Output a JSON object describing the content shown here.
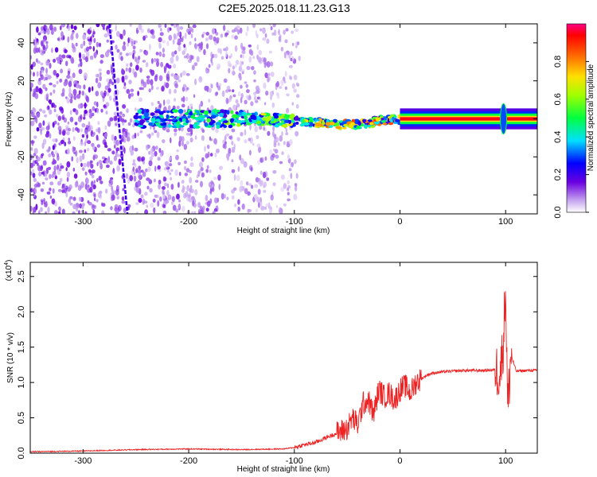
{
  "title": "C2E5.2025.018.11.23.G13",
  "chart_data": [
    {
      "type": "heatmap",
      "title": "",
      "xlabel": "Height of straight line (km)",
      "ylabel": "Frequency (Hz)",
      "xlim": [
        -350,
        130
      ],
      "ylim": [
        -50,
        50
      ],
      "xticks": [
        -300,
        -200,
        -100,
        0,
        100
      ],
      "yticks": [
        -40,
        -20,
        0,
        20,
        40
      ],
      "colorbar": {
        "label": "Normalized spectral amplitude",
        "range": [
          0,
          1
        ],
        "ticks": [
          "0.0",
          "0.2",
          "0.4",
          "0.6",
          "0.8"
        ],
        "colormap": "rainbow (purple→blue→cyan→green→yellow→orange→red→pink)"
      },
      "features": [
        {
          "name": "scattered noise speckle",
          "x_range": [
            -350,
            -95
          ],
          "y_range": [
            -50,
            50
          ]
        },
        {
          "name": "inclined noise streak",
          "x": [
            -275,
            -258
          ],
          "y": [
            50,
            -50
          ]
        },
        {
          "name": "signal band",
          "x": [
            -250,
            -150,
            -100,
            -75,
            -55,
            -40,
            -20,
            0,
            130
          ],
          "y": [
            0,
            0,
            -1,
            -2,
            -3,
            -3,
            -1,
            0,
            0
          ]
        },
        {
          "name": "spike",
          "x": 98,
          "y_range": [
            -8,
            8
          ]
        }
      ]
    },
    {
      "type": "line",
      "title": "",
      "xlabel": "Height of straight line (km)",
      "ylabel": "SNR (10 * v/v)",
      "yscale_note": "(x10",
      "yscale_exp": "4",
      "xlim": [
        -350,
        130
      ],
      "ylim": [
        0,
        2.7
      ],
      "xticks": [
        -300,
        -200,
        -100,
        0,
        100
      ],
      "yticks": [
        "0.0",
        "0.5",
        "1.0",
        "1.5",
        "2.0",
        "2.5"
      ],
      "series": [
        {
          "color": "#ee2222",
          "x": [
            -350,
            -300,
            -250,
            -200,
            -150,
            -110,
            -100,
            -90,
            -80,
            -70,
            -60,
            -50,
            -45,
            -40,
            -35,
            -30,
            -25,
            -20,
            -15,
            -10,
            -5,
            0,
            5,
            10,
            15,
            20,
            25,
            30,
            40,
            50,
            60,
            70,
            80,
            90,
            95,
            98,
            100,
            102,
            105,
            110,
            120,
            130
          ],
          "y": [
            0.02,
            0.03,
            0.05,
            0.06,
            0.05,
            0.06,
            0.08,
            0.12,
            0.15,
            0.22,
            0.28,
            0.35,
            0.5,
            0.4,
            0.7,
            0.75,
            0.55,
            0.9,
            0.8,
            0.85,
            0.75,
            0.9,
            0.95,
            0.85,
            1.0,
            1.05,
            1.1,
            1.13,
            1.15,
            1.16,
            1.17,
            1.17,
            1.17,
            1.18,
            1.15,
            1.6,
            2.4,
            0.6,
            1.4,
            1.16,
            1.17,
            1.17
          ]
        }
      ]
    }
  ],
  "colors": {
    "line": "#ee2222",
    "band": "#ffd000",
    "axis": "#000000"
  }
}
